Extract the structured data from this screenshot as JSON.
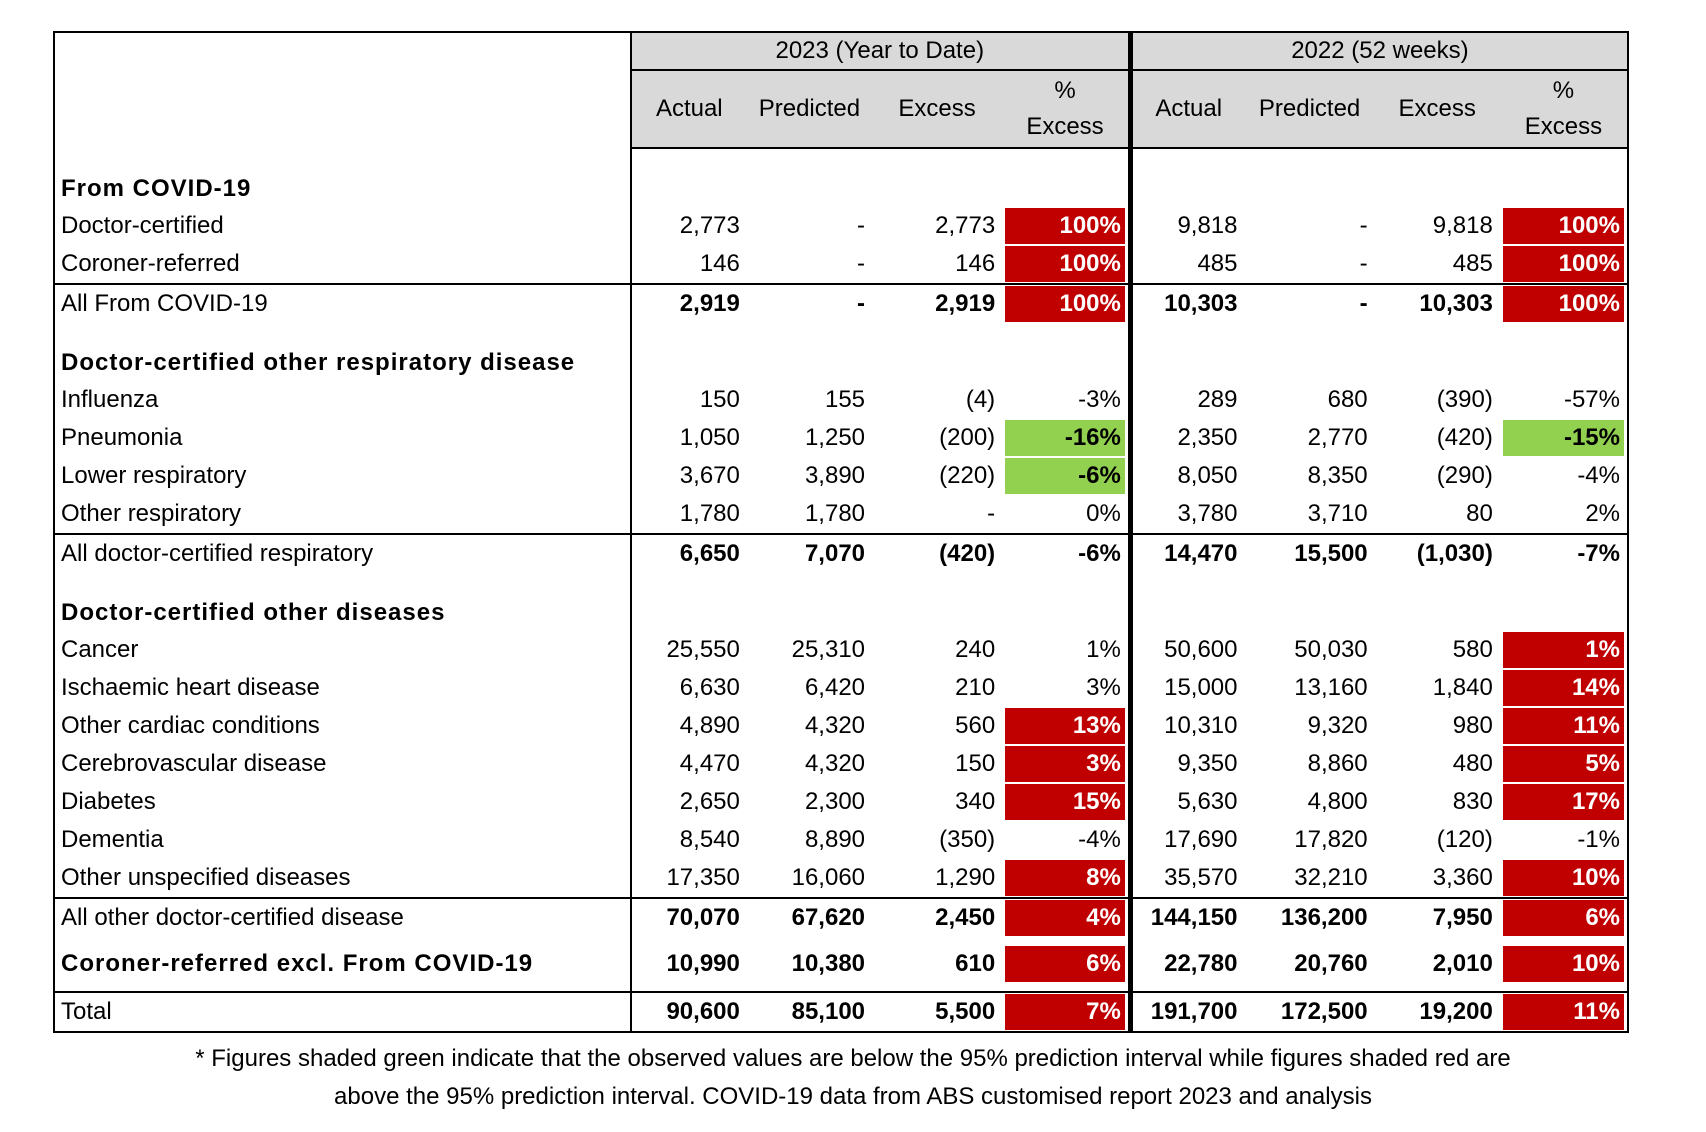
{
  "header": {
    "groups": [
      {
        "title": "2023 (Year to Date)",
        "columns": [
          "Actual",
          "Predicted",
          "Excess",
          "%\nExcess"
        ]
      },
      {
        "title": "2022 (52 weeks)",
        "columns": [
          "Actual",
          "Predicted",
          "Excess",
          "%\nExcess"
        ]
      }
    ]
  },
  "colors": {
    "red": "#c00000",
    "green": "#92d050"
  },
  "table": {
    "rows": [
      {
        "label": "From COVID-19",
        "section": true
      },
      {
        "label": "Doctor-certified",
        "cells": [
          "2,773",
          "-",
          "2,773",
          "100%",
          "9,818",
          "-",
          "9,818",
          "100%"
        ],
        "red": [
          3,
          7
        ]
      },
      {
        "label": "Coroner-referred",
        "cells": [
          "146",
          "-",
          "146",
          "100%",
          "485",
          "-",
          "485",
          "100%"
        ],
        "red": [
          3,
          7
        ]
      },
      {
        "label": "All From COVID-19",
        "cells": [
          "2,919",
          "-",
          "2,919",
          "100%",
          "10,303",
          "-",
          "10,303",
          "100%"
        ],
        "red": [
          3,
          7
        ],
        "values_bold": true,
        "rule": true
      },
      {
        "label": "Doctor-certified other respiratory disease",
        "section": true
      },
      {
        "label": "Influenza",
        "cells": [
          "150",
          "155",
          "(4)",
          "-3%",
          "289",
          "680",
          "(390)",
          "-57%"
        ]
      },
      {
        "label": "Pneumonia",
        "cells": [
          "1,050",
          "1,250",
          "(200)",
          "-16%",
          "2,350",
          "2,770",
          "(420)",
          "-15%"
        ],
        "green": [
          3,
          7
        ]
      },
      {
        "label": "Lower respiratory",
        "cells": [
          "3,670",
          "3,890",
          "(220)",
          "-6%",
          "8,050",
          "8,350",
          "(290)",
          "-4%"
        ],
        "green": [
          3
        ]
      },
      {
        "label": "Other respiratory",
        "cells": [
          "1,780",
          "1,780",
          "-",
          "0%",
          "3,780",
          "3,710",
          "80",
          "2%"
        ]
      },
      {
        "label": "All doctor-certified respiratory",
        "cells": [
          "6,650",
          "7,070",
          "(420)",
          "-6%",
          "14,470",
          "15,500",
          "(1,030)",
          "-7%"
        ],
        "values_bold": true,
        "rule": true
      },
      {
        "label": "Doctor-certified other diseases",
        "section": true
      },
      {
        "label": "Cancer",
        "cells": [
          "25,550",
          "25,310",
          "240",
          "1%",
          "50,600",
          "50,030",
          "580",
          "1%"
        ],
        "red": [
          7
        ]
      },
      {
        "label": "Ischaemic heart disease",
        "cells": [
          "6,630",
          "6,420",
          "210",
          "3%",
          "15,000",
          "13,160",
          "1,840",
          "14%"
        ],
        "red": [
          7
        ]
      },
      {
        "label": "Other cardiac conditions",
        "cells": [
          "4,890",
          "4,320",
          "560",
          "13%",
          "10,310",
          "9,320",
          "980",
          "11%"
        ],
        "red": [
          3,
          7
        ]
      },
      {
        "label": "Cerebrovascular disease",
        "cells": [
          "4,470",
          "4,320",
          "150",
          "3%",
          "9,350",
          "8,860",
          "480",
          "5%"
        ],
        "red": [
          3,
          7
        ]
      },
      {
        "label": "Diabetes",
        "cells": [
          "2,650",
          "2,300",
          "340",
          "15%",
          "5,630",
          "4,800",
          "830",
          "17%"
        ],
        "red": [
          3,
          7
        ]
      },
      {
        "label": "Dementia",
        "cells": [
          "8,540",
          "8,890",
          "(350)",
          "-4%",
          "17,690",
          "17,820",
          "(120)",
          "-1%"
        ]
      },
      {
        "label": "Other unspecified diseases",
        "cells": [
          "17,350",
          "16,060",
          "1,290",
          "8%",
          "35,570",
          "32,210",
          "3,360",
          "10%"
        ],
        "red": [
          3,
          7
        ]
      },
      {
        "label": "All other doctor-certified disease",
        "cells": [
          "70,070",
          "67,620",
          "2,450",
          "4%",
          "144,150",
          "136,200",
          "7,950",
          "6%"
        ],
        "red": [
          3,
          7
        ],
        "values_bold": true,
        "rule": true
      },
      {
        "label": "Coroner-referred excl. From COVID-19",
        "cells": [
          "10,990",
          "10,380",
          "610",
          "6%",
          "22,780",
          "20,760",
          "2,010",
          "10%"
        ],
        "red": [
          3,
          7
        ],
        "values_bold": true,
        "label_bold": true,
        "tall": true
      },
      {
        "label": "Total",
        "cells": [
          "90,600",
          "85,100",
          "5,500",
          "7%",
          "191,700",
          "172,500",
          "19,200",
          "11%"
        ],
        "red": [
          3,
          7
        ],
        "values_bold": true,
        "rule": true
      }
    ]
  },
  "footnote": [
    "* Figures shaded green indicate that the observed values are below  the 95% prediction interval while figures shaded red are",
    "above the 95% prediction interval.  COVID-19 data from ABS customised report 2023 and analysis"
  ]
}
